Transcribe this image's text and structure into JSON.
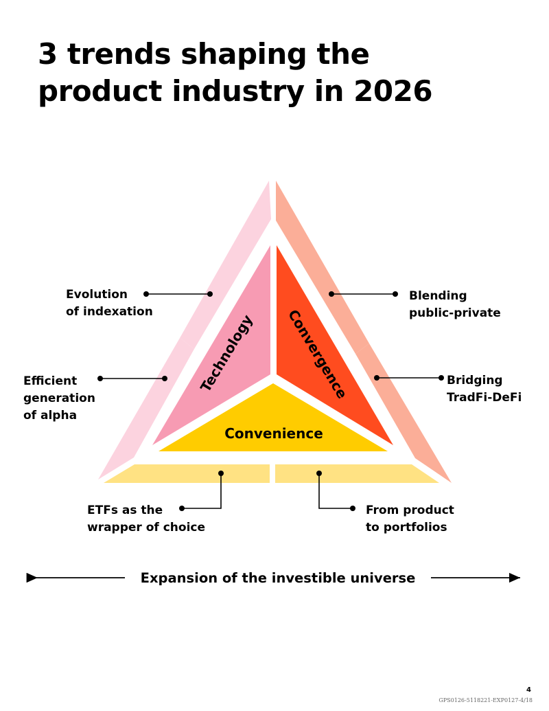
{
  "title": {
    "line1": "3 trends shaping the",
    "line2": "product industry in 2026"
  },
  "trends": {
    "technology": "Technology",
    "convergence": "Convergence",
    "convenience": "Convenience"
  },
  "outer_labels": {
    "evolution": [
      "Evolution",
      "of indexation"
    ],
    "efficient": [
      "Efficient",
      "generation",
      "of alpha"
    ],
    "blending": [
      "Blending",
      "public-private"
    ],
    "bridging": [
      "Bridging",
      "TradFi-DeFi"
    ],
    "etfs": [
      "ETFs as the",
      "wrapper of choice"
    ],
    "from_product": [
      "From product",
      "to portfolios"
    ]
  },
  "expansion_label": "Expansion of the investible universe",
  "page_number": "4",
  "doc_code": "GPS0126-5118221-EXP0127-4/18",
  "colors": {
    "technology": "#F79BB3",
    "convergence": "#FF4C1F",
    "convenience": "#FFCC00",
    "left_band": "#FCD3DF",
    "right_band": "#FBAE98",
    "bottom_band": "#FFE283"
  }
}
